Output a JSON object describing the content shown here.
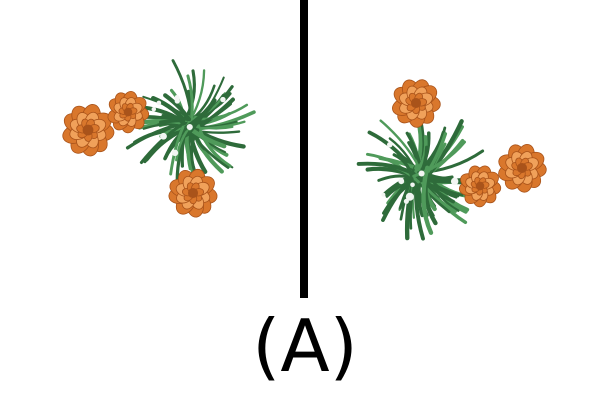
{
  "caption": "(A)",
  "colors": {
    "background": "#ffffff",
    "divider": "#000000",
    "leaf": "#2e6b3a",
    "leaf_light": "#4f9a5a",
    "petal": "#d9772c",
    "petal_dark": "#a9531a",
    "petal_light": "#f0a15a"
  },
  "images": {
    "left": "marigold-plant-top-view",
    "right": "marigold-plant-top-view-rotated"
  }
}
